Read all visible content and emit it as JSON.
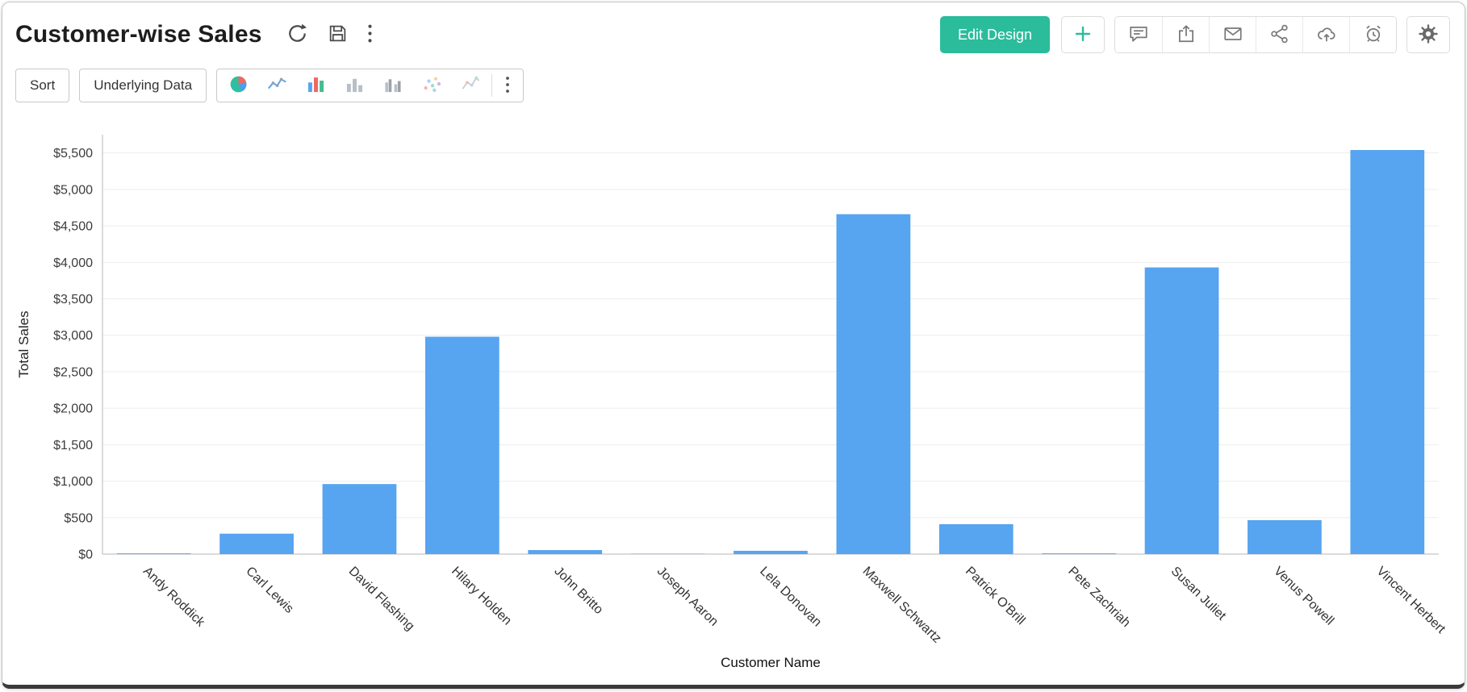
{
  "header": {
    "title": "Customer-wise Sales",
    "edit_design_label": "Edit Design",
    "title_icons": [
      "refresh-icon",
      "save-icon",
      "more-vertical-icon"
    ],
    "action_icons": [
      "add-icon",
      "comment-icon",
      "export-icon",
      "email-icon",
      "share-icon",
      "cloud-upload-icon",
      "schedule-icon",
      "settings-icon"
    ]
  },
  "toolbar": {
    "sort_label": "Sort",
    "underlying_data_label": "Underlying Data",
    "chart_type_icons": [
      "pie-chart-icon",
      "line-chart-icon",
      "bar-chart-icon",
      "bar-chart-gray-icon",
      "grouped-bar-chart-icon",
      "scatter-plot-icon",
      "combo-chart-icon",
      "more-vertical-icon"
    ]
  },
  "chart_data": {
    "type": "bar",
    "title": "Customer-wise Sales",
    "xlabel": "Customer Name",
    "ylabel": "Total Sales",
    "categories": [
      "Andy Roddick",
      "Carl Lewis",
      "David Flashing",
      "Hilary Holden",
      "John Britto",
      "Joseph Aaron",
      "Lela Donovan",
      "Maxwell Schwartz",
      "Patrick O'Brill",
      "Pete Zachriah",
      "Susan Juliet",
      "Venus Powell",
      "Vincent Herbert"
    ],
    "values": [
      10,
      280,
      960,
      2980,
      55,
      5,
      45,
      4660,
      410,
      10,
      3930,
      465,
      5540
    ],
    "ylim": [
      0,
      5750
    ],
    "yticks": [
      0,
      500,
      1000,
      1500,
      2000,
      2500,
      3000,
      3500,
      4000,
      4500,
      5000,
      5500
    ],
    "ytick_prefix": "$",
    "grid": "horizontal",
    "legend": "none",
    "bar_color": "#57a4f1"
  },
  "colors": {
    "accent_teal": "#2bbc9c",
    "bar_blue": "#57a4f1",
    "icon_gray": "#787878",
    "grid_gray": "#ededed"
  }
}
